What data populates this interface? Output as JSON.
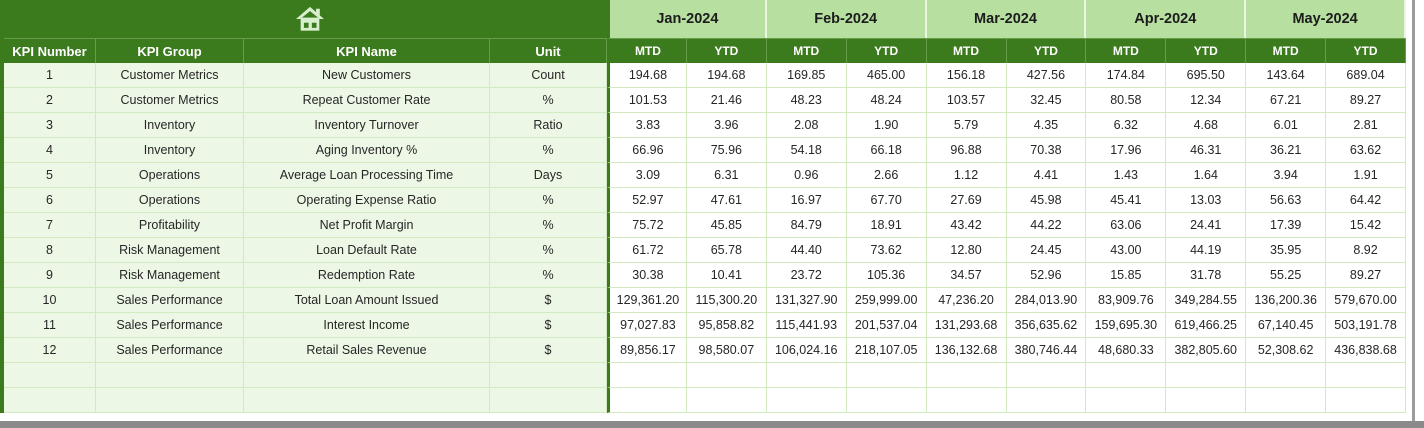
{
  "colors": {
    "dark_green": "#3c7a1e",
    "month_band_green": "#b6dfa0",
    "row_tint_green": "#edf7e6",
    "gridline_green": "#d2eac0",
    "icon_pale_green": "#d8efcd",
    "scrollbar_gray": "#8a8a8a"
  },
  "icons": {
    "home": "home-icon"
  },
  "table": {
    "left_headers": [
      "KPI Number",
      "KPI Group",
      "KPI Name",
      "Unit"
    ],
    "months": [
      "Jan-2024",
      "Feb-2024",
      "Mar-2024",
      "Apr-2024",
      "May-2024"
    ],
    "sub_headers": [
      "MTD",
      "YTD"
    ],
    "rows": [
      {
        "kpi_number": "1",
        "kpi_group": "Customer Metrics",
        "kpi_name": "New Customers",
        "unit": "Count",
        "values": [
          "194.68",
          "194.68",
          "169.85",
          "465.00",
          "156.18",
          "427.56",
          "174.84",
          "695.50",
          "143.64",
          "689.04"
        ]
      },
      {
        "kpi_number": "2",
        "kpi_group": "Customer Metrics",
        "kpi_name": "Repeat Customer Rate",
        "unit": "%",
        "values": [
          "101.53",
          "21.46",
          "48.23",
          "48.24",
          "103.57",
          "32.45",
          "80.58",
          "12.34",
          "67.21",
          "89.27"
        ]
      },
      {
        "kpi_number": "3",
        "kpi_group": "Inventory",
        "kpi_name": "Inventory Turnover",
        "unit": "Ratio",
        "values": [
          "3.83",
          "3.96",
          "2.08",
          "1.90",
          "5.79",
          "4.35",
          "6.32",
          "4.68",
          "6.01",
          "2.81"
        ]
      },
      {
        "kpi_number": "4",
        "kpi_group": "Inventory",
        "kpi_name": "Aging Inventory %",
        "unit": "%",
        "values": [
          "66.96",
          "75.96",
          "54.18",
          "66.18",
          "96.88",
          "70.38",
          "17.96",
          "46.31",
          "36.21",
          "63.62"
        ]
      },
      {
        "kpi_number": "5",
        "kpi_group": "Operations",
        "kpi_name": "Average Loan Processing Time",
        "unit": "Days",
        "values": [
          "3.09",
          "6.31",
          "0.96",
          "2.66",
          "1.12",
          "4.41",
          "1.43",
          "1.64",
          "3.94",
          "1.91"
        ]
      },
      {
        "kpi_number": "6",
        "kpi_group": "Operations",
        "kpi_name": "Operating Expense Ratio",
        "unit": "%",
        "values": [
          "52.97",
          "47.61",
          "16.97",
          "67.70",
          "27.69",
          "45.98",
          "45.41",
          "13.03",
          "56.63",
          "64.42"
        ]
      },
      {
        "kpi_number": "7",
        "kpi_group": "Profitability",
        "kpi_name": "Net Profit Margin",
        "unit": "%",
        "values": [
          "75.72",
          "45.85",
          "84.79",
          "18.91",
          "43.42",
          "44.22",
          "63.06",
          "24.41",
          "17.39",
          "15.42"
        ]
      },
      {
        "kpi_number": "8",
        "kpi_group": "Risk Management",
        "kpi_name": "Loan Default Rate",
        "unit": "%",
        "values": [
          "61.72",
          "65.78",
          "44.40",
          "73.62",
          "12.80",
          "24.45",
          "43.00",
          "44.19",
          "35.95",
          "8.92"
        ]
      },
      {
        "kpi_number": "9",
        "kpi_group": "Risk Management",
        "kpi_name": "Redemption Rate",
        "unit": "%",
        "values": [
          "30.38",
          "10.41",
          "23.72",
          "105.36",
          "34.57",
          "52.96",
          "15.85",
          "31.78",
          "55.25",
          "89.27"
        ]
      },
      {
        "kpi_number": "10",
        "kpi_group": "Sales Performance",
        "kpi_name": "Total Loan Amount Issued",
        "unit": "$",
        "values": [
          "129,361.20",
          "115,300.20",
          "131,327.90",
          "259,999.00",
          "47,236.20",
          "284,013.90",
          "83,909.76",
          "349,284.55",
          "136,200.36",
          "579,670.00"
        ]
      },
      {
        "kpi_number": "11",
        "kpi_group": "Sales Performance",
        "kpi_name": "Interest Income",
        "unit": "$",
        "values": [
          "97,027.83",
          "95,858.82",
          "115,441.93",
          "201,537.04",
          "131,293.68",
          "356,635.62",
          "159,695.30",
          "619,466.25",
          "67,140.45",
          "503,191.78"
        ]
      },
      {
        "kpi_number": "12",
        "kpi_group": "Sales Performance",
        "kpi_name": "Retail Sales Revenue",
        "unit": "$",
        "values": [
          "89,856.17",
          "98,580.07",
          "106,024.16",
          "218,107.05",
          "136,132.68",
          "380,746.44",
          "48,680.33",
          "382,805.60",
          "52,308.62",
          "436,838.68"
        ]
      },
      {
        "kpi_number": "",
        "kpi_group": "",
        "kpi_name": "",
        "unit": "",
        "values": [
          "",
          "",
          "",
          "",
          "",
          "",
          "",
          "",
          "",
          ""
        ]
      },
      {
        "kpi_number": "",
        "kpi_group": "",
        "kpi_name": "",
        "unit": "",
        "values": [
          "",
          "",
          "",
          "",
          "",
          "",
          "",
          "",
          "",
          ""
        ]
      }
    ]
  }
}
